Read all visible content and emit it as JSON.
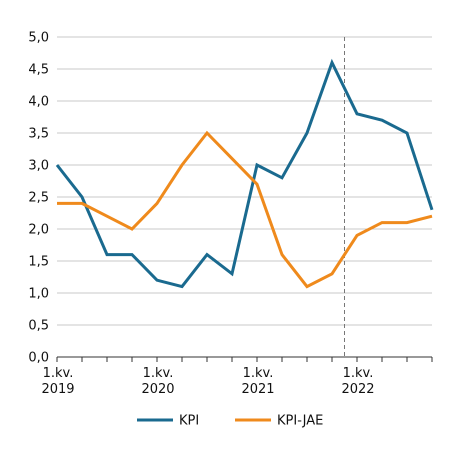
{
  "chart_data": {
    "type": "line",
    "x": [
      "2019Q1",
      "2019Q2",
      "2019Q3",
      "2019Q4",
      "2020Q1",
      "2020Q2",
      "2020Q3",
      "2020Q4",
      "2021Q1",
      "2021Q2",
      "2021Q3",
      "2021Q4",
      "2022Q1",
      "2022Q2",
      "2022Q3",
      "2022Q4"
    ],
    "series": [
      {
        "name": "KPI",
        "color": "#1a6a8f",
        "values": [
          3.0,
          2.5,
          1.6,
          1.6,
          1.2,
          1.1,
          1.6,
          1.3,
          3.0,
          2.8,
          3.5,
          4.6,
          3.8,
          3.7,
          3.5,
          2.3
        ]
      },
      {
        "name": "KPI-JAE",
        "color": "#ef8a1c",
        "values": [
          2.4,
          2.4,
          2.2,
          2.0,
          2.4,
          3.0,
          3.5,
          3.1,
          2.7,
          1.6,
          1.1,
          1.3,
          1.9,
          2.1,
          2.1,
          2.2
        ]
      }
    ],
    "ylim": [
      0,
      5
    ],
    "yticks": [
      "0,0",
      "0,5",
      "1,0",
      "1,5",
      "2,0",
      "2,5",
      "3,0",
      "3,5",
      "4,0",
      "4,5",
      "5,0"
    ],
    "xticks": [
      {
        "index": 0,
        "line1": "1.kv.",
        "line2": "2019"
      },
      {
        "index": 4,
        "line1": "1.kv.",
        "line2": "2020"
      },
      {
        "index": 8,
        "line1": "1.kv.",
        "line2": "2021"
      },
      {
        "index": 12,
        "line1": "1.kv.",
        "line2": "2022"
      }
    ],
    "vline_between_index": [
      11,
      12
    ],
    "grid": true,
    "legend": "bottom-center",
    "title": "",
    "xlabel": "",
    "ylabel": ""
  }
}
